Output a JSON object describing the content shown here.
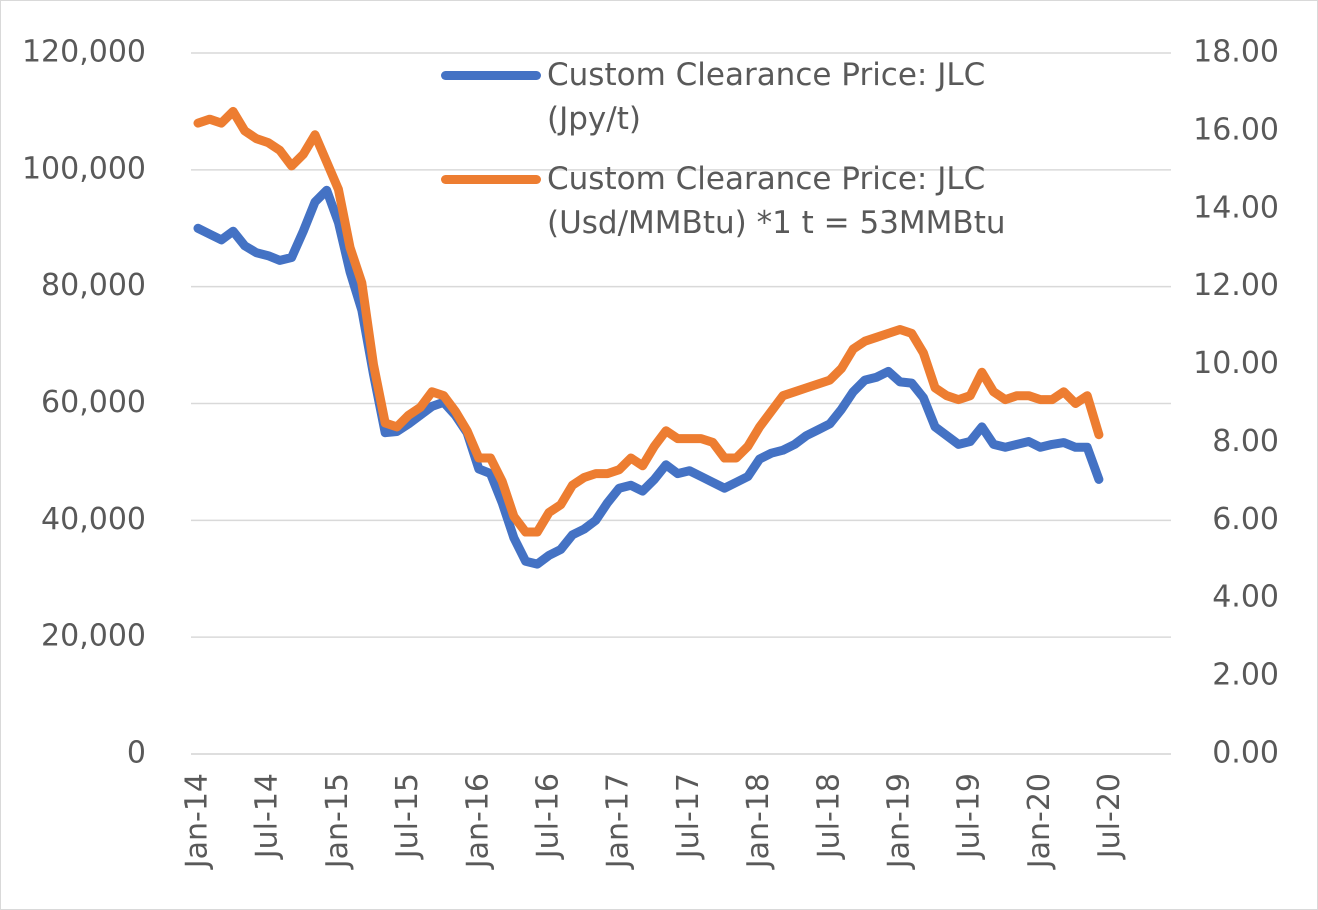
{
  "chart_data": {
    "type": "line",
    "categories": [
      "Jan-14",
      null,
      null,
      null,
      null,
      null,
      "Jul-14",
      null,
      null,
      null,
      null,
      null,
      "Jan-15",
      null,
      null,
      null,
      null,
      null,
      "Jul-15",
      null,
      null,
      null,
      null,
      null,
      "Jan-16",
      null,
      null,
      null,
      null,
      null,
      "Jul-16",
      null,
      null,
      null,
      null,
      null,
      "Jan-17",
      null,
      null,
      null,
      null,
      null,
      "Jul-17",
      null,
      null,
      null,
      null,
      null,
      "Jan-18",
      null,
      null,
      null,
      null,
      null,
      "Jul-18",
      null,
      null,
      null,
      null,
      null,
      "Jan-19",
      null,
      null,
      null,
      null,
      null,
      "Jul-19",
      null,
      null,
      null,
      null,
      null,
      "Jan-20",
      null,
      null,
      null,
      null,
      null,
      "Jul-20"
    ],
    "series": [
      {
        "name": "Custom Clearance Price: JLC (Jpy/t)",
        "color": "#4472c4",
        "axis": "y",
        "values": [
          90000,
          89000,
          88000,
          89500,
          87000,
          85800,
          85300,
          84500,
          85000,
          89500,
          94500,
          96500,
          91000,
          82500,
          76000,
          65000,
          55000,
          55200,
          56500,
          58000,
          59500,
          60200,
          58000,
          55000,
          48800,
          48000,
          43000,
          37000,
          33000,
          32500,
          34000,
          35000,
          37500,
          38500,
          40000,
          43000,
          45500,
          46000,
          45000,
          47000,
          49500,
          48000,
          48500,
          47500,
          46500,
          45500,
          46500,
          47500,
          50500,
          51500,
          52000,
          53000,
          54500,
          55500,
          56500,
          59000,
          62000,
          64000,
          64500,
          65500,
          63700,
          63500,
          61000,
          56000,
          54500,
          53000,
          53500,
          56000,
          53000,
          52500,
          53000,
          53500,
          52500,
          53000,
          53300,
          52500,
          52500,
          47000,
          null
        ]
      },
      {
        "name": "Custom Clearance Price: JLC (Usd/MMBtu) *1 t = 53MMBtu",
        "color": "#ed7d31",
        "axis": "y2",
        "values": [
          16.2,
          16.3,
          16.2,
          16.5,
          16.0,
          15.8,
          15.7,
          15.5,
          15.1,
          15.4,
          15.9,
          15.2,
          14.5,
          13.0,
          12.1,
          10.0,
          8.5,
          8.4,
          8.7,
          8.9,
          9.3,
          9.2,
          8.8,
          8.3,
          7.6,
          7.6,
          7.0,
          6.1,
          5.7,
          5.7,
          6.2,
          6.4,
          6.9,
          7.1,
          7.2,
          7.2,
          7.3,
          7.6,
          7.4,
          7.9,
          8.3,
          8.1,
          8.1,
          8.1,
          8.0,
          7.6,
          7.6,
          7.9,
          8.4,
          8.8,
          9.2,
          9.3,
          9.4,
          9.5,
          9.6,
          9.9,
          10.4,
          10.6,
          10.7,
          10.8,
          10.9,
          10.8,
          10.3,
          9.4,
          9.2,
          9.1,
          9.2,
          9.8,
          9.3,
          9.1,
          9.2,
          9.2,
          9.1,
          9.1,
          9.3,
          9.0,
          9.2,
          8.2,
          null
        ]
      }
    ],
    "ylim": [
      0,
      120000
    ],
    "yticks": [
      0,
      {
        "value": 20000,
        "label": "20,000"
      },
      {
        "value": 40000,
        "label": "40,000"
      },
      {
        "value": 60000,
        "label": "60,000"
      },
      {
        "value": 80000,
        "label": "80,000"
      },
      {
        "value": 100000,
        "label": "100,000"
      },
      {
        "value": 120000,
        "label": "120,000"
      }
    ],
    "y2lim": [
      0,
      18
    ],
    "y2ticks": [
      {
        "value": 0,
        "label": "0.00"
      },
      {
        "value": 2,
        "label": "2.00"
      },
      {
        "value": 4,
        "label": "4.00"
      },
      {
        "value": 6,
        "label": "6.00"
      },
      {
        "value": 8,
        "label": "8.00"
      },
      {
        "value": 10,
        "label": "10.00"
      },
      {
        "value": 12,
        "label": "12.00"
      },
      {
        "value": 14,
        "label": "14.00"
      },
      {
        "value": 16,
        "label": "16.00"
      },
      {
        "value": 18,
        "label": "18.00"
      }
    ],
    "grid": true,
    "legend": "top-right"
  }
}
